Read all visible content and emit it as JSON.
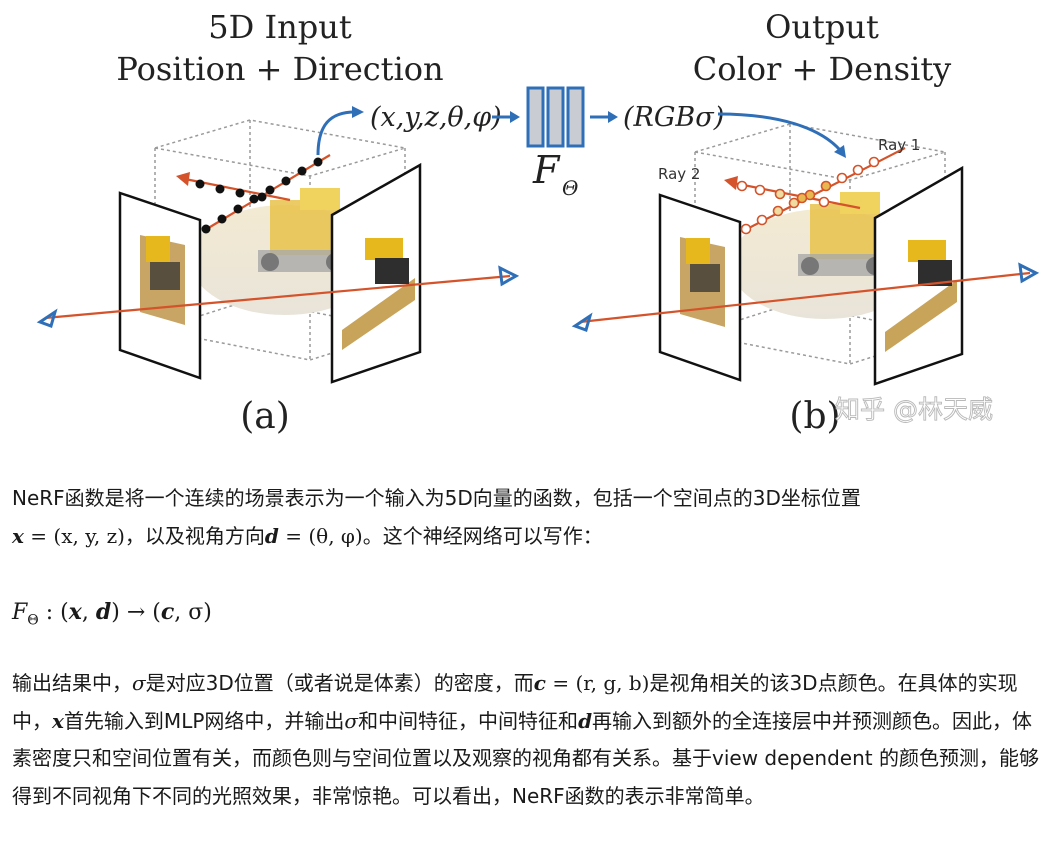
{
  "figure": {
    "input_title_line1": "5D Input",
    "input_title_line2": "Position + Direction",
    "input_tuple": "(x,y,z,θ,φ)",
    "network_label": "F",
    "network_subscript": "Θ",
    "output_tuple": "(RGBσ)",
    "output_title_line1": "Output",
    "output_title_line2": "Color + Density",
    "ray1_label": "Ray 1",
    "ray2_label": "Ray 2",
    "panel_a_label": "(a)",
    "panel_b_label": "(b)",
    "watermark": "知乎 @林天威",
    "colors": {
      "ray": "#d4532a",
      "arrow_blue": "#2f6fb8",
      "net_fill": "#c9ccd3",
      "net_stroke": "#2f6fb8",
      "box_dash": "#9a9a9a"
    }
  },
  "text": {
    "p1_a": "NeRF函数是将一个连续的场景表示为一个输入为5D向量的函数，包括一个空间点的3D坐标位置",
    "p1_x": "x",
    "p1_eq1": " = (x, y, z)",
    "p1_b": "，以及视角方向",
    "p1_d": "d",
    "p1_eq2": " = (θ, φ)",
    "p1_c": "。这个神经网络可以写作：",
    "f_F": "F",
    "f_sub": "Θ",
    "f_colon": " : (",
    "f_x": "x",
    "f_comma": ", ",
    "f_d": "d",
    "f_arrow": ") → (",
    "f_c": "c",
    "f_sigma": ", σ)",
    "p2_a": "输出结果中，",
    "p2_sigma": "σ",
    "p2_b": "是对应3D位置（或者说是体素）的密度，而",
    "p2_c": "c",
    "p2_eq": " = (r, g, b)",
    "p2_d": "是视角相关的该3D点颜色。在具体的实现中，",
    "p2_x": "x",
    "p2_e": "首先输入到MLP网络中，并输出",
    "p2_sigma2": "σ",
    "p2_f": "和中间特征，中间特征和",
    "p2_dd": "d",
    "p2_g": "再输入到额外的全连接层中并预测颜色。因此，体素密度只和空间位置有关，而颜色则与空间位置以及观察的视角都有关系。基于view dependent 的颜色预测，能够得到不同视角下不同的光照效果，非常惊艳。可以看出，NeRF函数的表示非常简单。"
  }
}
